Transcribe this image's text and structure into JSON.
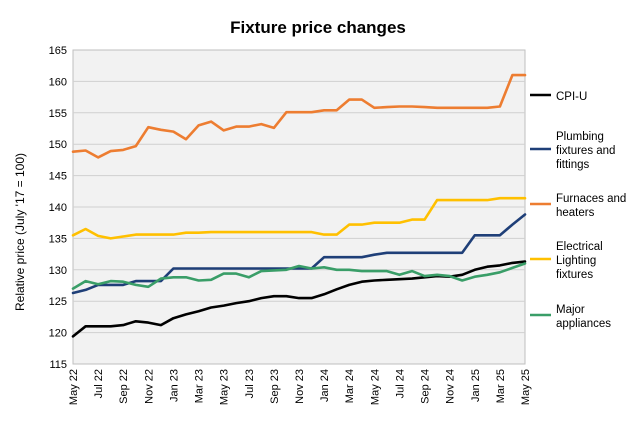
{
  "chart_data": {
    "type": "line",
    "title": "Fixture price changes",
    "xlabel": "",
    "ylabel": "Relative price (July '17 = 100)",
    "ylim": [
      115,
      165
    ],
    "yticks": [
      115,
      120,
      125,
      130,
      135,
      140,
      145,
      150,
      155,
      160,
      165
    ],
    "x": [
      "May 22",
      "Jun 22",
      "Jul 22",
      "Aug 22",
      "Sep 22",
      "Oct 22",
      "Nov 22",
      "Dec 22",
      "Jan 23",
      "Feb 23",
      "Mar 23",
      "Apr 23",
      "May 23",
      "Jun 23",
      "Jul 23",
      "Aug 23",
      "Sep 23",
      "Oct 23",
      "Nov 23",
      "Dec 23",
      "Jan 24",
      "Feb 24",
      "Mar 24",
      "Apr 24",
      "May 24",
      "Jun 24",
      "Jul 24",
      "Aug 24",
      "Sep 24",
      "Oct 24",
      "Nov 24",
      "Dec 24",
      "Jan 25",
      "Feb 25",
      "Mar 25",
      "Apr 25",
      "May 25"
    ],
    "xtick_labels": [
      "May 22",
      "Jul 22",
      "Sep 22",
      "Nov 22",
      "Jan 23",
      "Mar 23",
      "May 23",
      "Jul 23",
      "Sep 23",
      "Nov 23",
      "Jan 24",
      "Mar 24",
      "May 24",
      "Jul 24",
      "Sep 24",
      "Nov 24",
      "Jan 25",
      "Mar 25",
      "May 25"
    ],
    "grid": "horizontal",
    "legend_position": "right",
    "series": [
      {
        "name": "CPI-U",
        "color": "#000000",
        "values": [
          119.4,
          121.0,
          121.0,
          121.0,
          121.2,
          121.8,
          121.6,
          121.2,
          122.3,
          122.9,
          123.4,
          124.0,
          124.3,
          124.7,
          125.0,
          125.5,
          125.8,
          125.8,
          125.5,
          125.5,
          126.1,
          126.9,
          127.6,
          128.1,
          128.3,
          128.4,
          128.5,
          128.6,
          128.8,
          129.0,
          128.9,
          129.2,
          130.0,
          130.5,
          130.7,
          131.1,
          131.3
        ]
      },
      {
        "name": "Plumbing fixtures and fittings",
        "color": "#1f3f78",
        "values": [
          126.3,
          126.8,
          127.6,
          127.6,
          127.6,
          128.2,
          128.2,
          128.2,
          130.2,
          130.2,
          130.2,
          130.2,
          130.2,
          130.2,
          130.2,
          130.2,
          130.2,
          130.2,
          130.2,
          130.2,
          132.0,
          132.0,
          132.0,
          132.0,
          132.4,
          132.7,
          132.7,
          132.7,
          132.7,
          132.7,
          132.7,
          132.7,
          135.5,
          135.5,
          135.5,
          137.2,
          138.8
        ]
      },
      {
        "name": "Furnaces and heaters",
        "color": "#ed7d31",
        "values": [
          148.8,
          149.0,
          147.9,
          148.9,
          149.1,
          149.7,
          152.7,
          152.3,
          152.0,
          150.8,
          153.0,
          153.6,
          152.2,
          152.8,
          152.8,
          153.2,
          152.6,
          155.1,
          155.1,
          155.1,
          155.4,
          155.4,
          157.1,
          157.1,
          155.8,
          155.9,
          156.0,
          156.0,
          155.9,
          155.8,
          155.8,
          155.8,
          155.8,
          155.8,
          156.0,
          161.0,
          161.0
        ]
      },
      {
        "name": "Electrical Lighting fixtures",
        "color": "#ffc000",
        "values": [
          135.5,
          136.5,
          135.4,
          135.0,
          135.3,
          135.6,
          135.6,
          135.6,
          135.6,
          135.9,
          135.9,
          136.0,
          136.0,
          136.0,
          136.0,
          136.0,
          136.0,
          136.0,
          136.0,
          136.0,
          135.6,
          135.6,
          137.2,
          137.2,
          137.5,
          137.5,
          137.5,
          138.0,
          138.0,
          141.1,
          141.1,
          141.1,
          141.1,
          141.1,
          141.4,
          141.4,
          141.4
        ]
      },
      {
        "name": "Major appliances",
        "color": "#3a9e68",
        "values": [
          127.0,
          128.2,
          127.7,
          128.2,
          128.1,
          127.6,
          127.3,
          128.6,
          128.8,
          128.8,
          128.3,
          128.4,
          129.4,
          129.4,
          128.8,
          129.8,
          129.9,
          130.0,
          130.6,
          130.2,
          130.4,
          130.0,
          130.0,
          129.8,
          129.8,
          129.8,
          129.2,
          129.8,
          129.0,
          129.2,
          129.0,
          128.3,
          128.9,
          129.2,
          129.6,
          130.3,
          131.0
        ]
      }
    ],
    "legend_labels": [
      {
        "series": 0,
        "lines": [
          "CPI-U"
        ]
      },
      {
        "series": 1,
        "lines": [
          "Plumbing",
          "fixtures and",
          "fittings"
        ]
      },
      {
        "series": 2,
        "lines": [
          "Furnaces and",
          "heaters"
        ]
      },
      {
        "series": 3,
        "lines": [
          "Electrical",
          "Lighting",
          "fixtures"
        ]
      },
      {
        "series": 4,
        "lines": [
          "Major",
          "appliances"
        ]
      }
    ]
  }
}
